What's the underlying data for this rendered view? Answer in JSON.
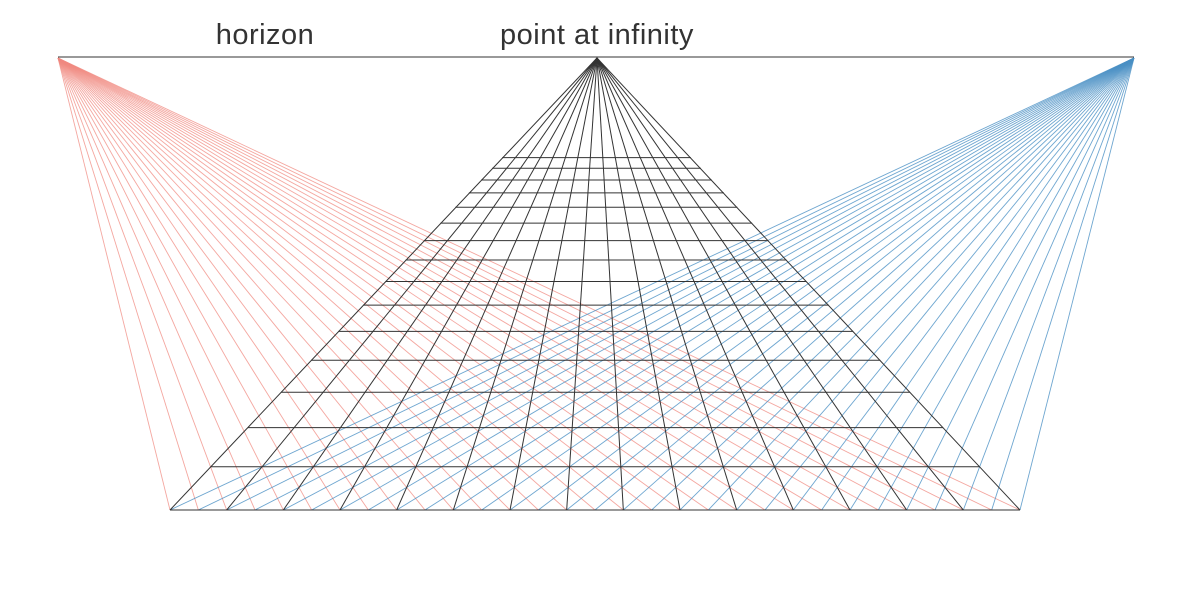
{
  "labels": {
    "horizon": "horizon",
    "vanishing_point": "point at infinity"
  },
  "grid": {
    "columns": 15,
    "rows": 15
  },
  "colors": {
    "background": "#ffffff",
    "horizon_line": "#333333",
    "grid_lines": "#333333",
    "left_diagonals": "#f08a80",
    "right_diagonals": "#4a90c4"
  }
}
